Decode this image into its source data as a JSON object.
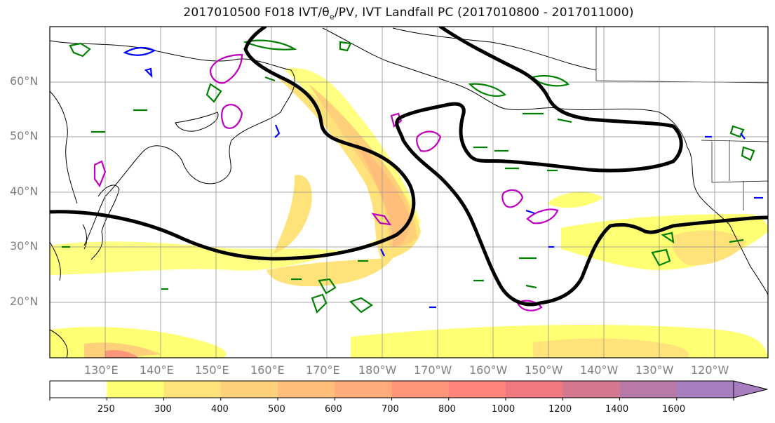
{
  "title": {
    "prefix": "2017010500 F018 IVT/",
    "theta": "θ",
    "theta_sub": "e",
    "suffix": "/PV, IVT Landfall PC (2017010800 - 2017011000)"
  },
  "lat_labels": [
    "60°N",
    "50°N",
    "40°N",
    "30°N",
    "20°N"
  ],
  "lon_labels": [
    "130°E",
    "140°E",
    "150°E",
    "160°E",
    "170°E",
    "180°W",
    "170°W",
    "160°W",
    "150°W",
    "140°W",
    "130°W",
    "120°W"
  ],
  "colorbar": {
    "ticks": [
      "250",
      "300",
      "400",
      "500",
      "600",
      "700",
      "800",
      "1000",
      "1200",
      "1400",
      "1600"
    ],
    "colors": [
      "#ffffff",
      "#ffff73",
      "#ffe27a",
      "#ffd07a",
      "#ffbf7a",
      "#ffab7a",
      "#ff967a",
      "#ff847a",
      "#f0797f",
      "#d4778f",
      "#b77aa8",
      "#a77ec0"
    ]
  },
  "contour_colors": {
    "pc": "#000000",
    "theta_e": "#008000",
    "pv_positive": "#c000c0",
    "pv_negative": "#0000ff"
  }
}
